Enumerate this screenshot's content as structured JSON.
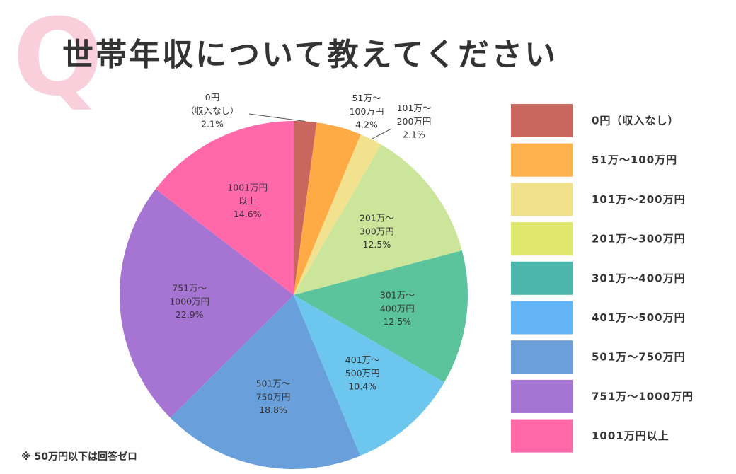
{
  "chart_data": {
    "type": "pie",
    "badge": "Q",
    "title": "世帯年収について教えてください",
    "categories": [
      "0円（収入なし）",
      "51万～100万円",
      "101万～200万円",
      "201万～300万円",
      "301万～400万円",
      "401万～500万円",
      "501万～750万円",
      "751万～1000万円",
      "1001万円以上"
    ],
    "values": [
      2.1,
      4.2,
      2.1,
      12.5,
      12.5,
      10.4,
      18.8,
      22.9,
      14.6
    ],
    "value_labels": [
      "2.1%",
      "4.2%",
      "2.1%",
      "12.5%",
      "12.5%",
      "10.4%",
      "18.8%",
      "22.9%",
      "14.6%"
    ],
    "colors": [
      "#ca665e",
      "#ffaa44",
      "#f2e290",
      "#cbe69a",
      "#5bc49c",
      "#6cc6ee",
      "#69a0dc",
      "#a674d2",
      "#ff69aa"
    ],
    "legend_colors": [
      "#c9665e",
      "#ffb14e",
      "#f0e08a",
      "#dfe76c",
      "#4db6ac",
      "#64b5f6",
      "#6a9fdc",
      "#a674d2",
      "#ff69a8"
    ],
    "legend_position": "right",
    "footnote": "※ 50万円以下は回答ゼロ"
  }
}
